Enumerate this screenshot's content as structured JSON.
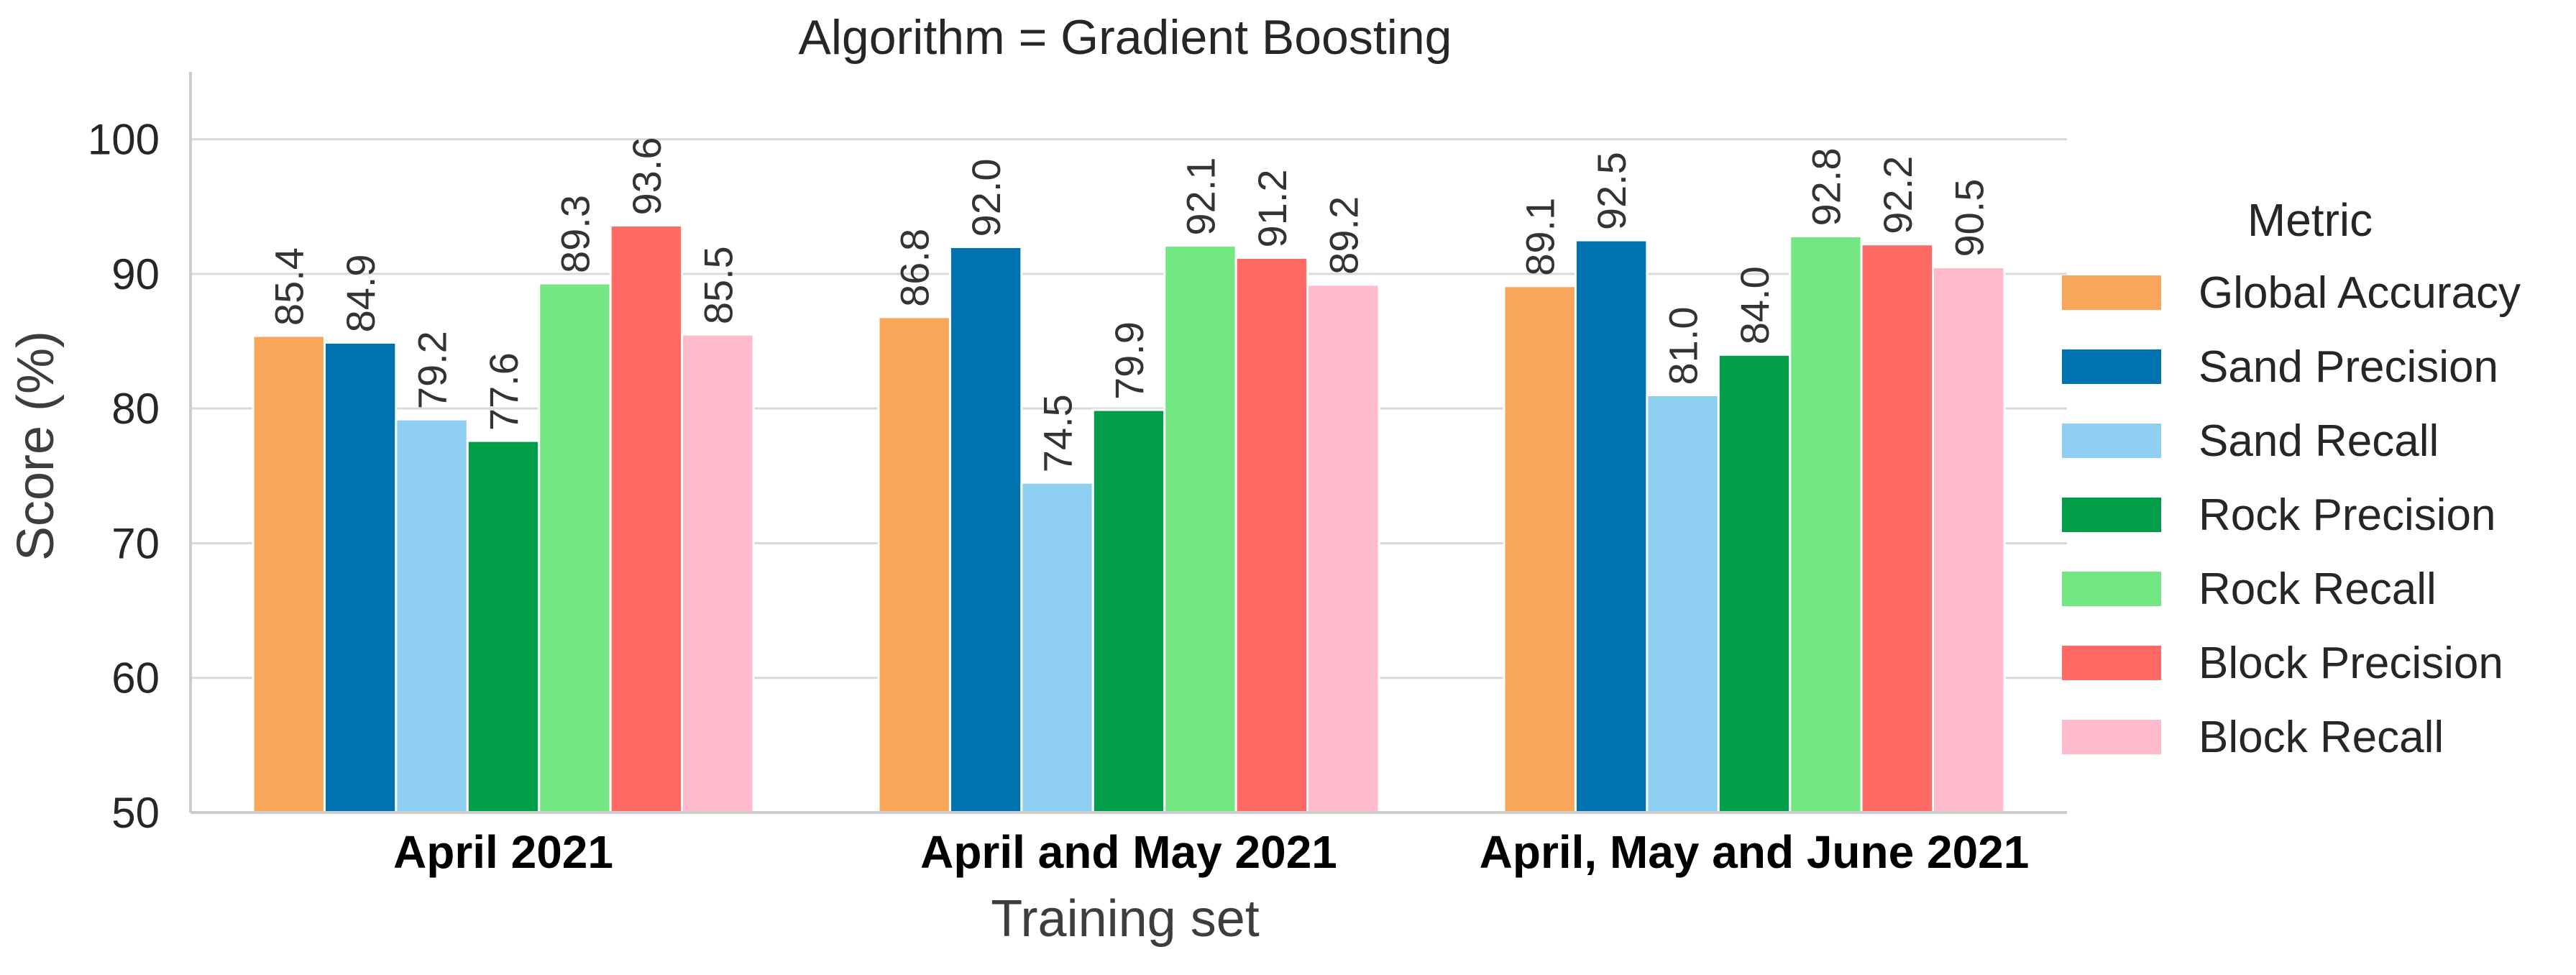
{
  "chart_data": {
    "type": "bar",
    "title": "Algorithm = Gradient Boosting",
    "xlabel": "Training set",
    "ylabel": "Score (%)",
    "ylim": [
      50,
      105
    ],
    "yticks": [
      50,
      60,
      70,
      80,
      90,
      100
    ],
    "grid": "horizontal",
    "legend_title": "Metric",
    "legend_position": "right",
    "categories": [
      "April 2021",
      "April and May 2021",
      "April, May and June 2021"
    ],
    "series": [
      {
        "name": "Global Accuracy",
        "color": "#f8a65a",
        "values": [
          85.4,
          86.8,
          89.1
        ]
      },
      {
        "name": "Sand Precision",
        "color": "#0072b0",
        "values": [
          84.9,
          92.0,
          92.5
        ]
      },
      {
        "name": "Sand Recall",
        "color": "#8fcff1",
        "values": [
          79.2,
          74.5,
          81.0
        ]
      },
      {
        "name": "Rock Precision",
        "color": "#009e49",
        "values": [
          77.6,
          79.9,
          84.0
        ]
      },
      {
        "name": "Rock Recall",
        "color": "#72e782",
        "values": [
          89.3,
          92.1,
          92.8
        ]
      },
      {
        "name": "Block Precision",
        "color": "#ff6b64",
        "values": [
          93.6,
          91.2,
          92.2
        ]
      },
      {
        "name": "Block Recall",
        "color": "#ffbacc",
        "values": [
          85.5,
          89.2,
          90.5
        ]
      }
    ]
  }
}
